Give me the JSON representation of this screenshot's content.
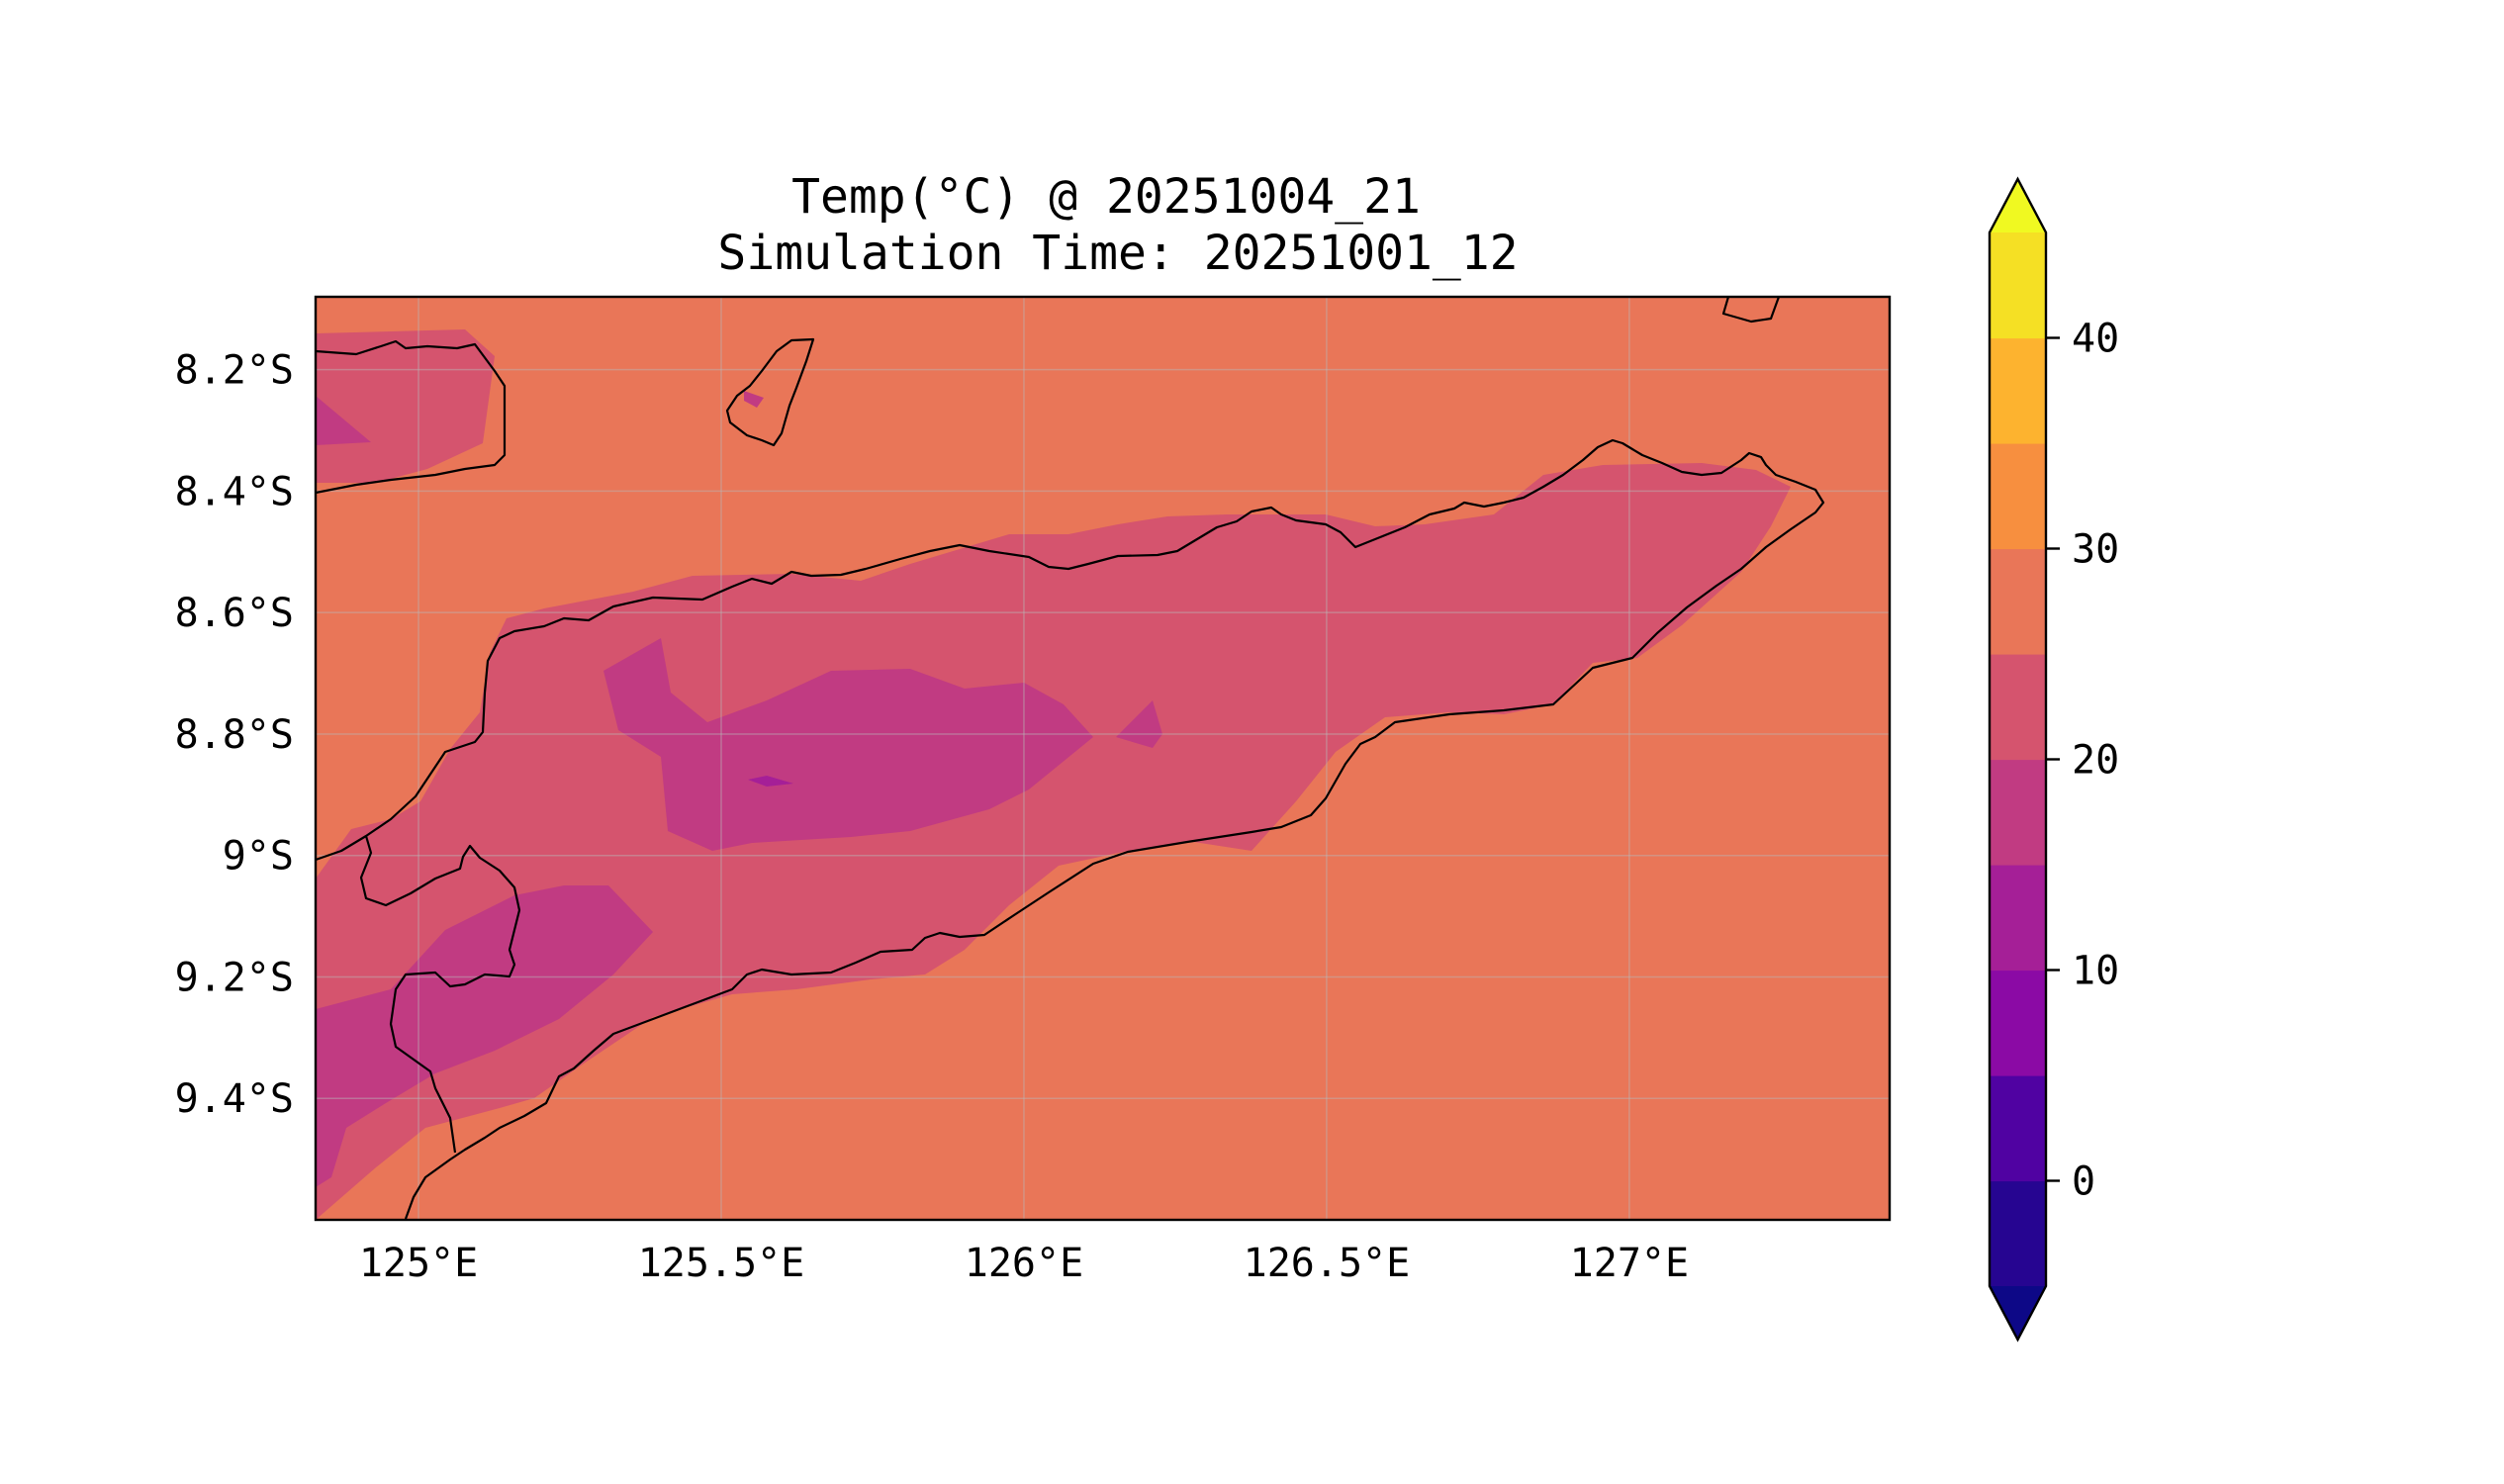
{
  "title": {
    "line1": "Temp(°C) @ 20251004_21",
    "line2": "Simulation Time: 20251001_12"
  },
  "map": {
    "lon_range": [
      124.83,
      127.43
    ],
    "lat_range": [
      -9.6,
      -8.08
    ],
    "x_ticks": [
      {
        "value": 125.0,
        "label": "125°E"
      },
      {
        "value": 125.5,
        "label": "125.5°E"
      },
      {
        "value": 126.0,
        "label": "126°E"
      },
      {
        "value": 126.5,
        "label": "126.5°E"
      },
      {
        "value": 127.0,
        "label": "127°E"
      }
    ],
    "y_ticks": [
      {
        "value": -8.2,
        "label": "8.2°S"
      },
      {
        "value": -8.4,
        "label": "8.4°S"
      },
      {
        "value": -8.6,
        "label": "8.6°S"
      },
      {
        "value": -8.8,
        "label": "8.8°S"
      },
      {
        "value": -9.0,
        "label": "9°S"
      },
      {
        "value": -9.2,
        "label": "9.2°S"
      },
      {
        "value": -9.4,
        "label": "9.4°S"
      }
    ],
    "gridlines": true,
    "background_color": "#e97658",
    "coastline_color": "#000000"
  },
  "colorbar": {
    "levels": [
      -5,
      0,
      5,
      10,
      15,
      20,
      25,
      30,
      35,
      40,
      45
    ],
    "colors": [
      "#260591",
      "#5002a2",
      "#8b0aa5",
      "#a51f97",
      "#c13b82",
      "#d5546e",
      "#e97658",
      "#f78f3f",
      "#fdb32f",
      "#f5e024"
    ],
    "under_color": "#0d0887",
    "over_color": "#f0f921",
    "extend": "both",
    "ticks": [
      {
        "value": 0,
        "label": "0"
      },
      {
        "value": 10,
        "label": "10"
      },
      {
        "value": 20,
        "label": "20"
      },
      {
        "value": 30,
        "label": "30"
      },
      {
        "value": 40,
        "label": "40"
      }
    ]
  }
}
